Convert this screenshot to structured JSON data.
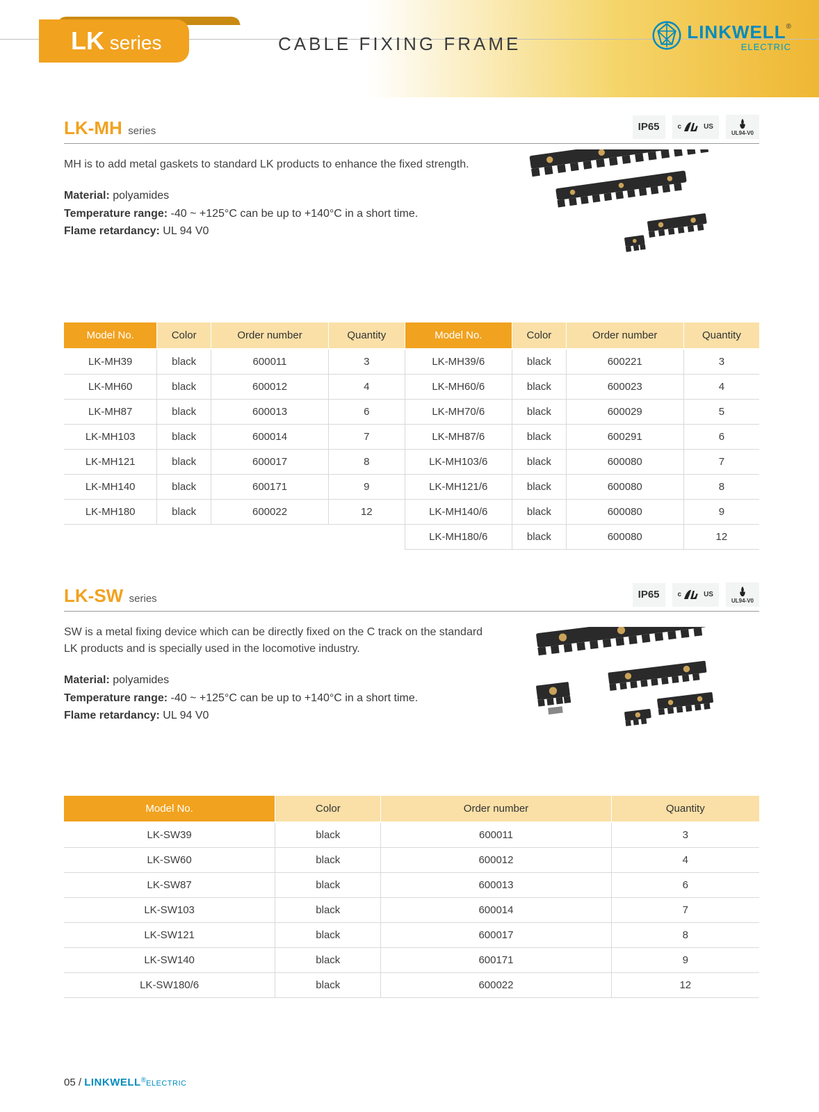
{
  "header": {
    "seriesTagBold": "LK",
    "seriesTagLight": "series",
    "pageTitle": "CABLE  FIXING  FRAME",
    "brandName": "LINKWELL",
    "brandSub": "ELECTRIC",
    "reg": "®"
  },
  "badges": {
    "ip": "IP65",
    "ulSub": "US",
    "ulC": "c",
    "flame": "UL94-V0"
  },
  "lkmh": {
    "prefix": "LK-MH",
    "suffix": "series",
    "desc": "MH is to add metal gaskets to standard LK products to enhance the fixed strength.",
    "materialLabel": "Material:",
    "material": " polyamides",
    "tempLabel": "Temperature range:",
    "temp": " -40 ~ +125°C can be up to +140°C in a short time.",
    "flameLabel": "Flame retardancy:",
    "flame": "  UL 94 V0",
    "columns": [
      "Model No.",
      "Color",
      "Order number",
      "Quantity",
      "Model No.",
      "Color",
      "Order number",
      "Quantity"
    ],
    "rows": [
      [
        "LK-MH39",
        "black",
        "600011",
        "3",
        "LK-MH39/6",
        "black",
        "600221",
        "3"
      ],
      [
        "LK-MH60",
        "black",
        "600012",
        "4",
        "LK-MH60/6",
        "black",
        "600023",
        "4"
      ],
      [
        "LK-MH87",
        "black",
        "600013",
        "6",
        "LK-MH70/6",
        "black",
        "600029",
        "5"
      ],
      [
        "LK-MH103",
        "black",
        "600014",
        "7",
        "LK-MH87/6",
        "black",
        "600291",
        "6"
      ],
      [
        "LK-MH121",
        "black",
        "600017",
        "8",
        "LK-MH103/6",
        "black",
        "600080",
        "7"
      ],
      [
        "LK-MH140",
        "black",
        "600171",
        "9",
        "LK-MH121/6",
        "black",
        "600080",
        "8"
      ],
      [
        "LK-MH180",
        "black",
        "600022",
        "12",
        "LK-MH140/6",
        "black",
        "600080",
        "9"
      ],
      [
        "",
        "",
        "",
        "",
        "LK-MH180/6",
        "black",
        "600080",
        "12"
      ]
    ]
  },
  "lksw": {
    "prefix": "LK-SW",
    "suffix": "series",
    "desc": "SW is a metal fixing device which can be directly fixed on the C track on the standard LK products and is specially used in the locomotive industry.",
    "materialLabel": "Material:",
    "material": " polyamides",
    "tempLabel": "Temperature range:",
    "temp": " -40 ~ +125°C can be up to +140°C in a short time.",
    "flameLabel": "Flame retardancy:",
    "flame": "  UL 94 V0",
    "columns": [
      "Model No.",
      "Color",
      "Order number",
      "Quantity"
    ],
    "rows": [
      [
        "LK-SW39",
        "black",
        "600011",
        "3"
      ],
      [
        "LK-SW60",
        "black",
        "600012",
        "4"
      ],
      [
        "LK-SW87",
        "black",
        "600013",
        "6"
      ],
      [
        "LK-SW103",
        "black",
        "600014",
        "7"
      ],
      [
        "LK-SW121",
        "black",
        "600017",
        "8"
      ],
      [
        "LK-SW140",
        "black",
        "600171",
        "9"
      ],
      [
        "LK-SW180/6",
        "black",
        "600022",
        "12"
      ]
    ]
  },
  "footer": {
    "page": "05",
    "sep": " / ",
    "brand": "LINKWELL",
    "sub": "ELECTRIC",
    "reg": "®"
  },
  "colors": {
    "accent": "#f1a21f",
    "peach": "#fae0a7",
    "brand": "#008bbf"
  }
}
